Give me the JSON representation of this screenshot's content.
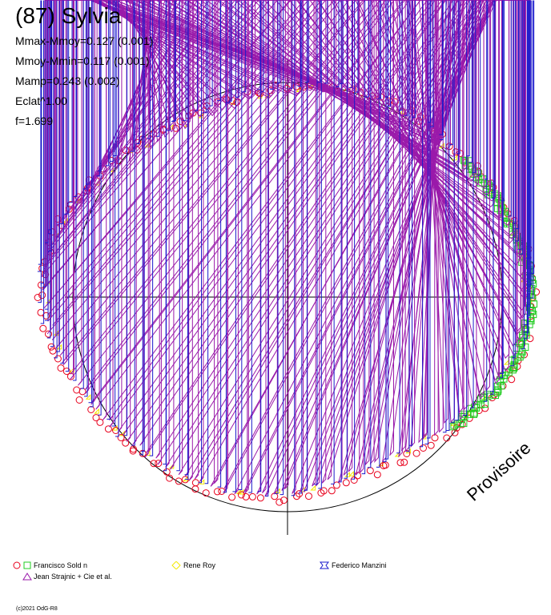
{
  "title": "(87) Sylvia",
  "stats": [
    "Mmax-Mmoy=0.127 (0.001)",
    "Mmoy-Mmin=0.117 (0.001)",
    "Mamp=0.243 (0.002)",
    "Eclat^1.00",
    "f=1.699"
  ],
  "watermark": "Provisoire",
  "credit": "(c)2021 OdG-R8",
  "chart_data": {
    "type": "polar-scatter",
    "reference_circle": true,
    "axes": "crosshair",
    "series": [
      {
        "name": "Francisco Sold n",
        "marker": "circle",
        "color": "#e8001c",
        "segments": [
          [
            0,
            360
          ]
        ]
      },
      {
        "name": "Francisco Sold n",
        "marker": "square",
        "color": "#22cc22",
        "segments": [
          [
            -40,
            40
          ]
        ]
      },
      {
        "name": "Rene Roy",
        "marker": "diamond",
        "color": "#f4e800",
        "segments": [
          [
            0,
            360
          ]
        ]
      },
      {
        "name": "Federico Manzini",
        "marker": "star",
        "color": "#1a1acc",
        "segments": [
          [
            0,
            360
          ]
        ]
      },
      {
        "name": "Jean Strajnic + Cie et al.",
        "marker": "triangle",
        "color": "#9a1aaa",
        "segments": [
          [
            0,
            360
          ]
        ]
      }
    ],
    "legend": [
      {
        "markers": [
          "circle",
          "square"
        ],
        "colors": [
          "#e8001c",
          "#22cc22"
        ],
        "label": "Francisco Sold n"
      },
      {
        "markers": [
          "diamond"
        ],
        "colors": [
          "#f4e800"
        ],
        "label": "Rene Roy"
      },
      {
        "markers": [
          "star"
        ],
        "colors": [
          "#1a1acc"
        ],
        "label": "Federico Manzini"
      },
      {
        "markers": [
          "triangle"
        ],
        "colors": [
          "#9a1aaa"
        ],
        "label": "Jean Strajnic + Cie et al."
      }
    ]
  }
}
